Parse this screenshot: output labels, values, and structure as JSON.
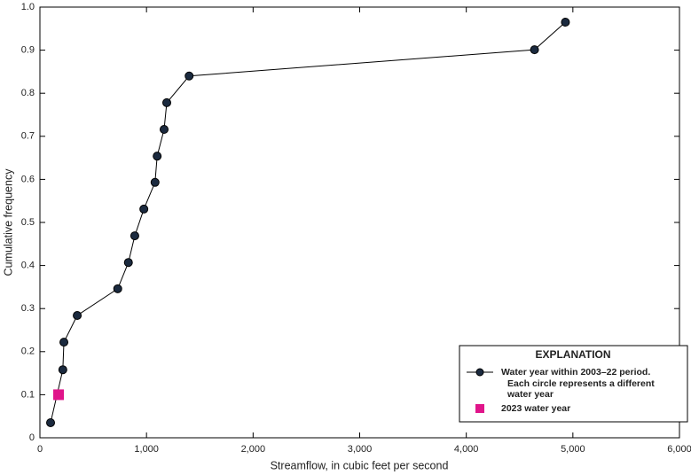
{
  "chart_data": {
    "type": "line",
    "x_label": "Streamflow, in cubic feet per second",
    "y_label": "Cumulative frequency",
    "xlim": [
      0,
      6000
    ],
    "xticks": [
      0,
      {
        "value": 1000,
        "label": "1,000"
      },
      {
        "value": 2000,
        "label": "2,000"
      },
      {
        "value": 3000,
        "label": "3,000"
      },
      {
        "value": 4000,
        "label": "4,000"
      },
      {
        "value": 5000,
        "label": "5,000"
      },
      {
        "value": 6000,
        "label": "6,000"
      }
    ],
    "ylim": [
      0,
      1
    ],
    "yticks": [
      0,
      0.1,
      0.2,
      0.3,
      0.4,
      0.5,
      0.6,
      0.7,
      0.8,
      0.9,
      {
        "value": 1,
        "label": "1.0"
      }
    ],
    "legend_title": "EXPLANATION",
    "legend_position": "lower right",
    "series": [
      {
        "name": "Water year within 2003–22 period.",
        "description": [
          "Each circle represents a different",
          "water year"
        ],
        "color": "#1b2a3f",
        "line_color": "#000000",
        "marker": "circle",
        "x": [
          100,
          215,
          225,
          350,
          730,
          830,
          890,
          975,
          1080,
          1100,
          1165,
          1190,
          1400,
          4640,
          4930
        ],
        "values": [
          0.035,
          0.158,
          0.222,
          0.284,
          0.346,
          0.407,
          0.469,
          0.531,
          0.593,
          0.654,
          0.716,
          0.778,
          0.84,
          0.901,
          0.965
        ]
      },
      {
        "name": "2023 water year",
        "color": "#e0158a",
        "marker": "square",
        "x": [
          175
        ],
        "values": [
          0.1
        ]
      }
    ]
  }
}
